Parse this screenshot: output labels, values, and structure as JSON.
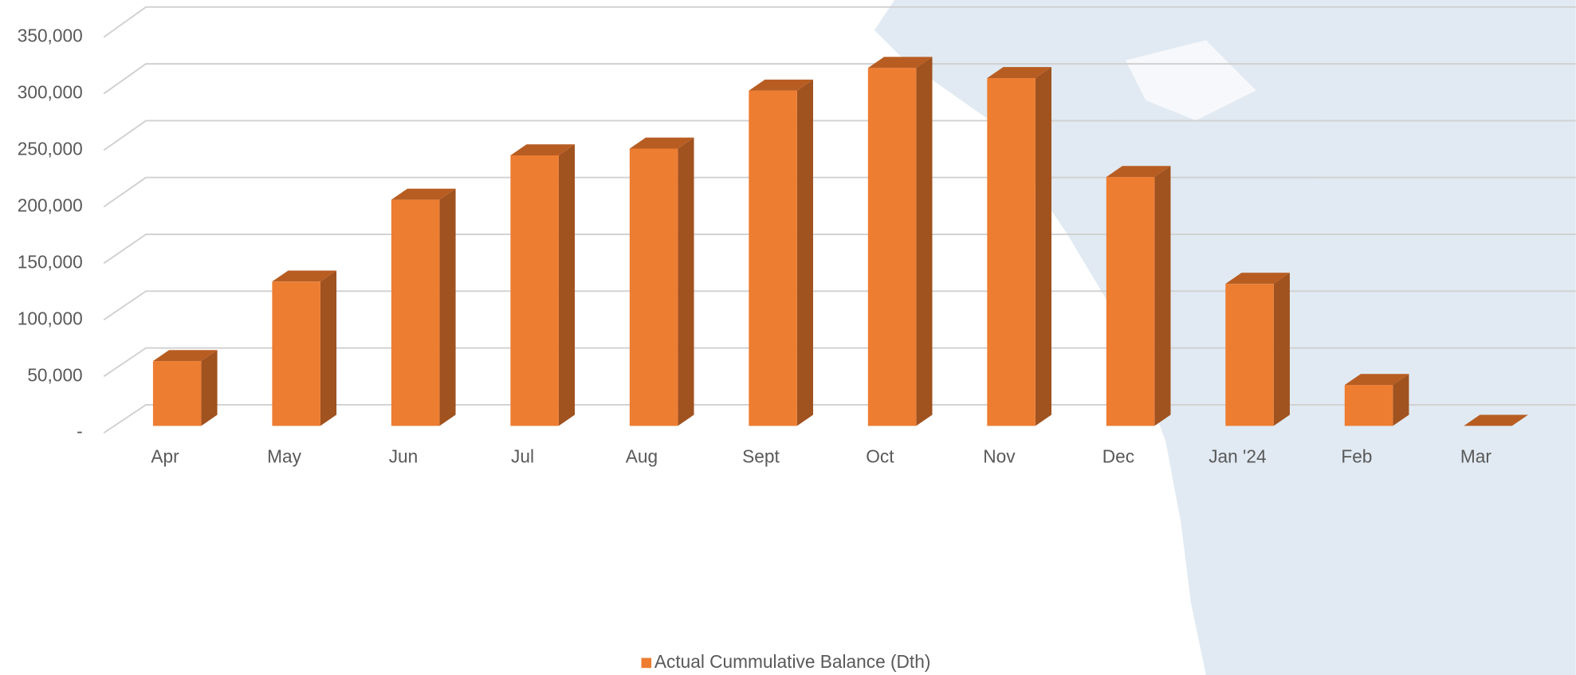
{
  "chart_data": {
    "type": "bar3d",
    "categories": [
      "Apr",
      "May",
      "Jun",
      "Jul",
      "Aug",
      "Sept",
      "Oct",
      "Nov",
      "Dec",
      "Jan '24",
      "Feb",
      "Mar"
    ],
    "series": [
      {
        "name": "Actual Cummulative Balance (Dth)",
        "color": "#ed7d31",
        "values": [
          57000,
          127000,
          199000,
          238000,
          244000,
          295000,
          315000,
          306000,
          219000,
          125000,
          36000,
          0
        ]
      }
    ],
    "ylim": [
      0,
      350000
    ],
    "yticks": [
      {
        "value": 0,
        "label": "-"
      },
      {
        "value": 50000,
        "label": "50,000"
      },
      {
        "value": 100000,
        "label": "100,000"
      },
      {
        "value": 150000,
        "label": "150,000"
      },
      {
        "value": 200000,
        "label": "200,000"
      },
      {
        "value": 250000,
        "label": "250,000"
      },
      {
        "value": 300000,
        "label": "300,000"
      },
      {
        "value": 350000,
        "label": "350,000"
      }
    ],
    "grid": true,
    "legend": "bottom"
  }
}
